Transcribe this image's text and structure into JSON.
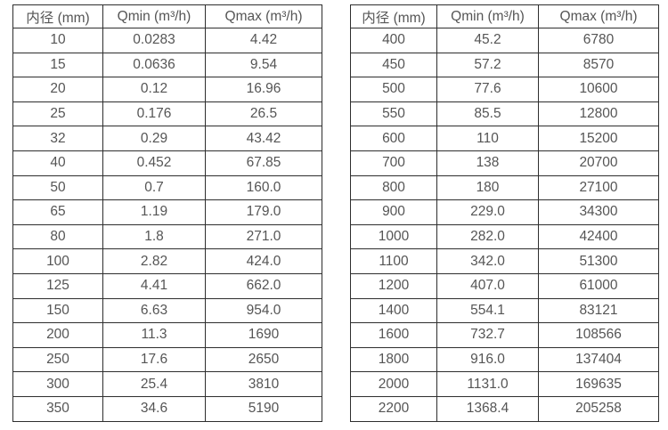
{
  "colors": {
    "border": "#2e2e2e",
    "text": "#555555",
    "background": "#ffffff"
  },
  "tables": [
    {
      "id": "left",
      "headers": [
        "内径 (mm)",
        "Qmin (m³/h)",
        "Qmax (m³/h)"
      ],
      "rows": [
        [
          "10",
          "0.0283",
          "4.42"
        ],
        [
          "15",
          "0.0636",
          "9.54"
        ],
        [
          "20",
          "0.12",
          "16.96"
        ],
        [
          "25",
          "0.176",
          "26.5"
        ],
        [
          "32",
          "0.29",
          "43.42"
        ],
        [
          "40",
          "0.452",
          "67.85"
        ],
        [
          "50",
          "0.7",
          "160.0"
        ],
        [
          "65",
          "1.19",
          "179.0"
        ],
        [
          "80",
          "1.8",
          "271.0"
        ],
        [
          "100",
          "2.82",
          "424.0"
        ],
        [
          "125",
          "4.41",
          "662.0"
        ],
        [
          "150",
          "6.63",
          "954.0"
        ],
        [
          "200",
          "11.3",
          "1690"
        ],
        [
          "250",
          "17.6",
          "2650"
        ],
        [
          "300",
          "25.4",
          "3810"
        ],
        [
          "350",
          "34.6",
          "5190"
        ]
      ]
    },
    {
      "id": "right",
      "headers": [
        "内径 (mm)",
        "Qmin (m³/h)",
        "Qmax (m³/h)"
      ],
      "rows": [
        [
          "400",
          "45.2",
          "6780"
        ],
        [
          "450",
          "57.2",
          "8570"
        ],
        [
          "500",
          "77.6",
          "10600"
        ],
        [
          "550",
          "85.5",
          "12800"
        ],
        [
          "600",
          "110",
          "15200"
        ],
        [
          "700",
          "138",
          "20700"
        ],
        [
          "800",
          "180",
          "27100"
        ],
        [
          "900",
          "229.0",
          "34300"
        ],
        [
          "1000",
          "282.0",
          "42400"
        ],
        [
          "1100",
          "342.0",
          "51300"
        ],
        [
          "1200",
          "407.0",
          "61000"
        ],
        [
          "1400",
          "554.1",
          "83121"
        ],
        [
          "1600",
          "732.7",
          "108566"
        ],
        [
          "1800",
          "916.0",
          "137404"
        ],
        [
          "2000",
          "1131.0",
          "169635"
        ],
        [
          "2200",
          "1368.4",
          "205258"
        ]
      ]
    }
  ]
}
